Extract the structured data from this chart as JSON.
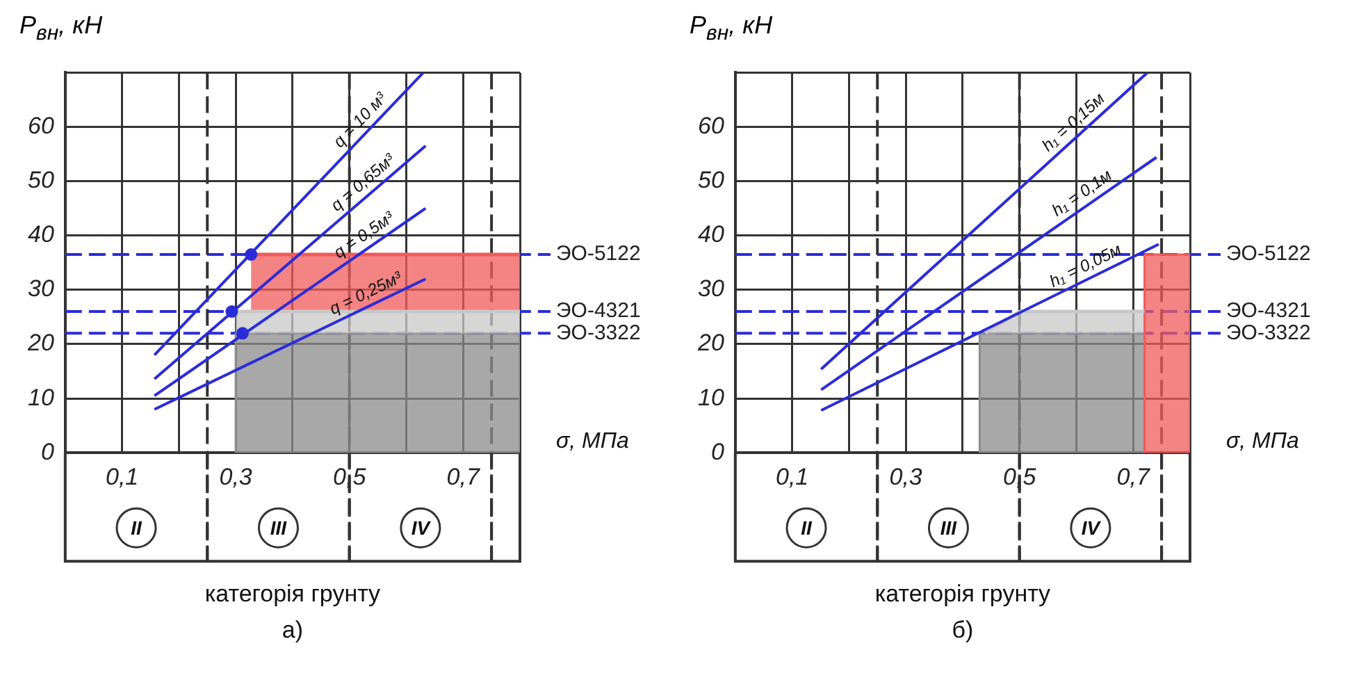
{
  "chart_data": [
    {
      "type": "line",
      "title": "а)",
      "ylabel": "P$_{вн}$, кН",
      "xlabel": "σ, МПа",
      "annotations": [
        "II",
        "III",
        "IV",
        "категорія грунту"
      ],
      "xlim": [
        0,
        0.8
      ],
      "ylim": [
        0,
        70
      ],
      "xticks": [
        {
          "value": 0,
          "label": null
        },
        {
          "value": 0.1,
          "label": "0,1"
        },
        {
          "value": 0.2,
          "label": null
        },
        {
          "value": 0.3,
          "label": "0,3"
        },
        {
          "value": 0.4,
          "label": null
        },
        {
          "value": 0.5,
          "label": "0,5"
        },
        {
          "value": 0.6,
          "label": null
        },
        {
          "value": 0.7,
          "label": "0,7"
        },
        {
          "value": 0.8,
          "label": null
        }
      ],
      "yticks": [
        0,
        10,
        20,
        30,
        40,
        50,
        60,
        {
          "value": 70,
          "label": null
        }
      ],
      "grid": true,
      "legend": false,
      "marker": "none",
      "series": [
        {
          "x": [
            0.327,
            0.8
          ],
          "values": [
            36.5,
            36.5
          ],
          "lower": [
            26,
            26
          ],
          "upper": [
            36.5,
            36.5
          ],
          "color": "#f05a5a"
        },
        {
          "x": [
            0.3,
            0.8
          ],
          "values": [
            26,
            26
          ],
          "lower": [
            22,
            22
          ],
          "upper": [
            26,
            26
          ],
          "color": "#c8c8c8"
        },
        {
          "type": "area",
          "x": [
            0.3,
            0.8
          ],
          "values": [
            22,
            22
          ],
          "color": "#8c8c8c"
        },
        {
          "name": "q = 10 м³",
          "x": [
            0.157,
            0.63
          ],
          "values": [
            18,
            70
          ],
          "color": "#2b2bd9"
        },
        {
          "name": "q = 0,65м³",
          "x": [
            0.157,
            0.634
          ],
          "values": [
            13.6,
            56.5
          ],
          "color": "#2b2bd9"
        },
        {
          "name": "q = 0,5м³",
          "x": [
            0.157,
            0.634
          ],
          "values": [
            10.5,
            45
          ],
          "color": "#2b2bd9"
        },
        {
          "name": "q = 0,25м³",
          "x": [
            0.157,
            0.634
          ],
          "values": [
            8,
            32
          ],
          "color": "#2b2bd9"
        },
        {
          "type": "scatter",
          "marker": "circle",
          "x": [
            0.327,
            0.293,
            0.312
          ],
          "values": [
            36.5,
            26,
            22
          ],
          "color": "#2b2bd9"
        }
      ],
      "ref_lines": [
        {
          "axis": "y",
          "value": 36.5,
          "label": "ЭО-5122",
          "color": "#2b2bd9",
          "line_style": "dashed"
        },
        {
          "axis": "y",
          "value": 26,
          "label": "ЭО-4321",
          "color": "#2b2bd9",
          "line_style": "dashed"
        },
        {
          "axis": "y",
          "value": 22,
          "label": "ЭО-3322",
          "color": "#2b2bd9",
          "line_style": "dashed"
        },
        {
          "axis": "x",
          "value": 0.25,
          "color": "#333333",
          "line_style": "dashed"
        },
        {
          "axis": "x",
          "value": 0.5,
          "color": "#333333",
          "line_style": "dashed"
        },
        {
          "axis": "x",
          "value": 0.75,
          "color": "#333333",
          "line_style": "dashed"
        }
      ]
    },
    {
      "type": "line",
      "title": "б)",
      "ylabel": "P$_{вн}$, кН",
      "xlabel": "σ, МПа",
      "annotations": [
        "II",
        "III",
        "IV",
        "категорія грунту"
      ],
      "xlim": [
        0,
        0.8
      ],
      "ylim": [
        0,
        70
      ],
      "xticks": [
        {
          "value": 0,
          "label": null
        },
        {
          "value": 0.1,
          "label": "0,1"
        },
        {
          "value": 0.2,
          "label": null
        },
        {
          "value": 0.3,
          "label": "0,3"
        },
        {
          "value": 0.4,
          "label": null
        },
        {
          "value": 0.5,
          "label": "0,5"
        },
        {
          "value": 0.6,
          "label": null
        },
        {
          "value": 0.7,
          "label": "0,7"
        },
        {
          "value": 0.8,
          "label": null
        }
      ],
      "yticks": [
        0,
        10,
        20,
        30,
        40,
        50,
        60,
        {
          "value": 70,
          "label": null
        }
      ],
      "grid": true,
      "legend": false,
      "marker": "none",
      "series": [
        {
          "type": "area",
          "x": [
            0.72,
            0.8
          ],
          "values": [
            36.5,
            36.5
          ],
          "color": "#f05a5a"
        },
        {
          "x": [
            0.44,
            0.5,
            0.72
          ],
          "values": [
            22,
            26,
            26
          ],
          "lower": [
            22,
            22,
            22
          ],
          "upper": [
            22,
            26,
            26
          ],
          "color": "#c8c8c8"
        },
        {
          "type": "area",
          "x": [
            0.43,
            0.72
          ],
          "values": [
            22,
            22
          ],
          "color": "#8c8c8c"
        },
        {
          "name": "h₁ = 0,15м",
          "x": [
            0.151,
            0.725
          ],
          "values": [
            15.4,
            70
          ],
          "color": "#2b2bd9"
        },
        {
          "name": "h₁ = 0,1м",
          "x": [
            0.151,
            0.741
          ],
          "values": [
            11.6,
            54.4
          ],
          "color": "#2b2bd9"
        },
        {
          "name": "h₁ = 0,05м",
          "x": [
            0.151,
            0.745
          ],
          "values": [
            7.8,
            38.4
          ],
          "color": "#2b2bd9"
        }
      ],
      "ref_lines": [
        {
          "axis": "y",
          "value": 36.5,
          "label": "ЭО-5122",
          "color": "#2b2bd9",
          "line_style": "dashed"
        },
        {
          "axis": "y",
          "value": 26,
          "label": "ЭО-4321",
          "color": "#2b2bd9",
          "line_style": "dashed"
        },
        {
          "axis": "y",
          "value": 22,
          "label": "ЭО-3322",
          "color": "#2b2bd9",
          "line_style": "dashed"
        },
        {
          "axis": "x",
          "value": 0.25,
          "color": "#333333",
          "line_style": "dashed"
        },
        {
          "axis": "x",
          "value": 0.5,
          "color": "#333333",
          "line_style": "dashed"
        },
        {
          "axis": "x",
          "value": 0.75,
          "color": "#333333",
          "line_style": "dashed"
        }
      ]
    }
  ]
}
